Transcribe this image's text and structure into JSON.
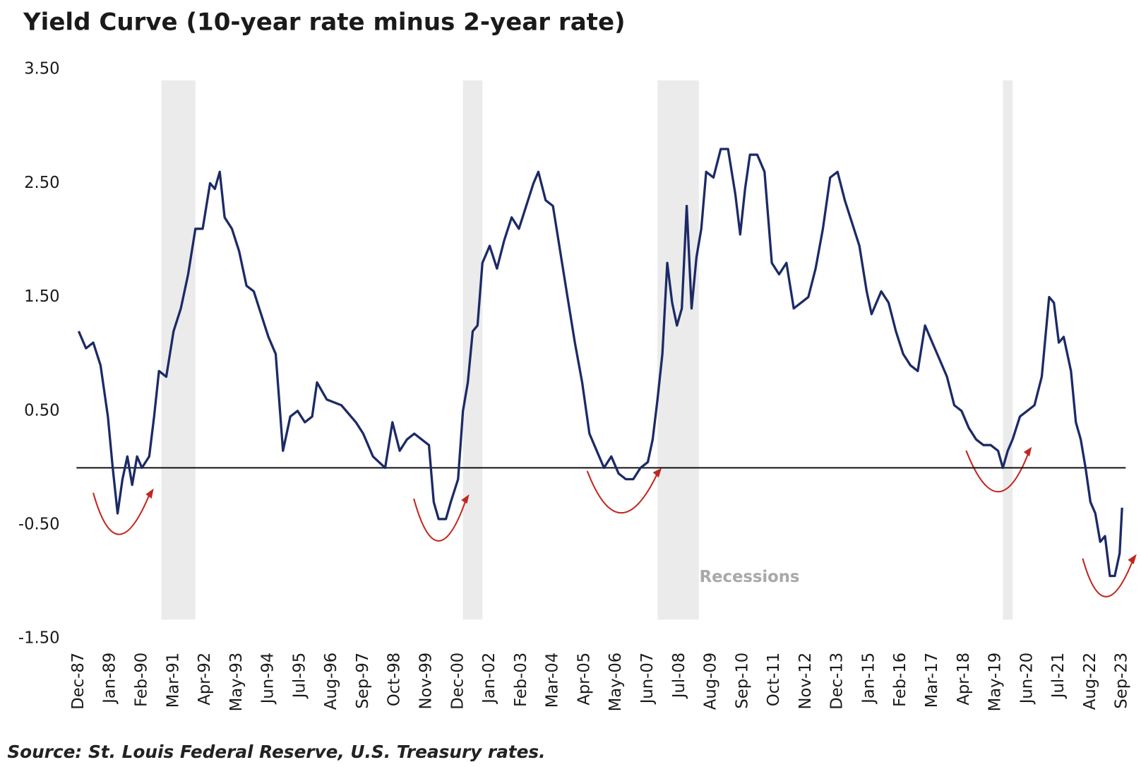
{
  "chart_data": {
    "type": "line",
    "title": "Yield Curve (10-year rate minus 2-year rate)",
    "source": "Source: St. Louis Federal Reserve, U.S. Treasury rates.",
    "annotation": "Recessions",
    "xlim": [
      "1987-12",
      "2023-09"
    ],
    "ylim": [
      -1.5,
      3.5
    ],
    "yticks": [
      {
        "value": 3.5,
        "label": "3.50"
      },
      {
        "value": 2.5,
        "label": "2.50"
      },
      {
        "value": 1.5,
        "label": "1.50"
      },
      {
        "value": 0.5,
        "label": "0.50"
      },
      {
        "value": -0.5,
        "label": "-0.50"
      },
      {
        "value": -1.5,
        "label": "-1.50"
      }
    ],
    "xticks": [
      {
        "value": "1987-12",
        "label": "Dec-87"
      },
      {
        "value": "1989-01",
        "label": "Jan-89"
      },
      {
        "value": "1990-02",
        "label": "Feb-90"
      },
      {
        "value": "1991-03",
        "label": "Mar-91"
      },
      {
        "value": "1992-04",
        "label": "Apr-92"
      },
      {
        "value": "1993-05",
        "label": "May-93"
      },
      {
        "value": "1994-06",
        "label": "Jun-94"
      },
      {
        "value": "1995-07",
        "label": "Jul-95"
      },
      {
        "value": "1996-08",
        "label": "Aug-96"
      },
      {
        "value": "1997-09",
        "label": "Sep-97"
      },
      {
        "value": "1998-10",
        "label": "Oct-98"
      },
      {
        "value": "1999-11",
        "label": "Nov-99"
      },
      {
        "value": "2000-12",
        "label": "Dec-00"
      },
      {
        "value": "2002-01",
        "label": "Jan-02"
      },
      {
        "value": "2003-02",
        "label": "Feb-03"
      },
      {
        "value": "2004-03",
        "label": "Mar-04"
      },
      {
        "value": "2005-04",
        "label": "Apr-05"
      },
      {
        "value": "2006-05",
        "label": "May-06"
      },
      {
        "value": "2007-06",
        "label": "Jun-07"
      },
      {
        "value": "2008-07",
        "label": "Jul-08"
      },
      {
        "value": "2009-08",
        "label": "Aug-09"
      },
      {
        "value": "2010-09",
        "label": "Sep-10"
      },
      {
        "value": "2011-10",
        "label": "Oct-11"
      },
      {
        "value": "2012-11",
        "label": "Nov-12"
      },
      {
        "value": "2013-12",
        "label": "Dec-13"
      },
      {
        "value": "2015-01",
        "label": "Jan-15"
      },
      {
        "value": "2016-02",
        "label": "Feb-16"
      },
      {
        "value": "2017-03",
        "label": "Mar-17"
      },
      {
        "value": "2018-04",
        "label": "Apr-18"
      },
      {
        "value": "2019-05",
        "label": "May-19"
      },
      {
        "value": "2020-06",
        "label": "Jun-20"
      },
      {
        "value": "2021-07",
        "label": "Jul-21"
      },
      {
        "value": "2022-08",
        "label": "Aug-22"
      },
      {
        "value": "2023-09",
        "label": "Sep-23"
      }
    ],
    "recessions": [
      {
        "start": "1990-10",
        "end": "1991-12"
      },
      {
        "start": "2001-02",
        "end": "2001-10"
      },
      {
        "start": "2007-10",
        "end": "2009-03"
      },
      {
        "start": "2019-08",
        "end": "2019-12"
      }
    ],
    "recession_color": "#ebebeb",
    "x": [
      "1987-12",
      "1988-03",
      "1988-06",
      "1988-09",
      "1988-12",
      "1989-02",
      "1989-04",
      "1989-06",
      "1989-08",
      "1989-10",
      "1989-12",
      "1990-02",
      "1990-05",
      "1990-07",
      "1990-09",
      "1990-12",
      "1991-03",
      "1991-06",
      "1991-09",
      "1991-12",
      "1992-03",
      "1992-06",
      "1992-08",
      "1992-10",
      "1992-12",
      "1993-03",
      "1993-06",
      "1993-09",
      "1993-12",
      "1994-03",
      "1994-06",
      "1994-09",
      "1994-12",
      "1995-03",
      "1995-06",
      "1995-09",
      "1995-12",
      "1996-02",
      "1996-06",
      "1996-12",
      "1997-06",
      "1997-09",
      "1998-01",
      "1998-06",
      "1998-09",
      "1998-12",
      "1999-03",
      "1999-06",
      "1999-09",
      "1999-12",
      "2000-02",
      "2000-04",
      "2000-07",
      "2000-09",
      "2000-12",
      "2001-02",
      "2001-04",
      "2001-06",
      "2001-08",
      "2001-10",
      "2002-01",
      "2002-04",
      "2002-07",
      "2002-10",
      "2003-01",
      "2003-04",
      "2003-07",
      "2003-09",
      "2003-12",
      "2004-03",
      "2004-06",
      "2004-09",
      "2004-12",
      "2005-03",
      "2005-06",
      "2005-09",
      "2005-12",
      "2006-03",
      "2006-06",
      "2006-09",
      "2006-12",
      "2007-03",
      "2007-06",
      "2007-08",
      "2007-10",
      "2007-12",
      "2008-02",
      "2008-04",
      "2008-06",
      "2008-08",
      "2008-10",
      "2008-12",
      "2009-02",
      "2009-04",
      "2009-06",
      "2009-09",
      "2009-12",
      "2010-03",
      "2010-06",
      "2010-08",
      "2010-10",
      "2010-12",
      "2011-03",
      "2011-06",
      "2011-09",
      "2011-12",
      "2012-03",
      "2012-06",
      "2012-09",
      "2012-12",
      "2013-03",
      "2013-06",
      "2013-09",
      "2013-12",
      "2014-03",
      "2014-06",
      "2014-09",
      "2014-12",
      "2015-02",
      "2015-06",
      "2015-09",
      "2015-12",
      "2016-03",
      "2016-06",
      "2016-09",
      "2016-12",
      "2017-03",
      "2017-06",
      "2017-09",
      "2017-12",
      "2018-03",
      "2018-06",
      "2018-09",
      "2018-12",
      "2019-03",
      "2019-06",
      "2019-08",
      "2019-10",
      "2019-12",
      "2020-03",
      "2020-06",
      "2020-09",
      "2020-12",
      "2021-03",
      "2021-05",
      "2021-07",
      "2021-09",
      "2021-12",
      "2022-02",
      "2022-04",
      "2022-06",
      "2022-08",
      "2022-10",
      "2022-12",
      "2023-02",
      "2023-04",
      "2023-06",
      "2023-08",
      "2023-09"
    ],
    "series": [
      {
        "color": "#1c2a66",
        "values": [
          1.2,
          1.05,
          1.1,
          0.9,
          0.45,
          0.0,
          -0.4,
          -0.1,
          0.1,
          -0.15,
          0.1,
          0.0,
          0.1,
          0.45,
          0.85,
          0.8,
          1.2,
          1.4,
          1.7,
          2.1,
          2.1,
          2.5,
          2.45,
          2.6,
          2.2,
          2.1,
          1.9,
          1.6,
          1.55,
          1.35,
          1.15,
          1.0,
          0.15,
          0.45,
          0.5,
          0.4,
          0.45,
          0.75,
          0.6,
          0.55,
          0.4,
          0.3,
          0.1,
          0.0,
          0.4,
          0.15,
          0.25,
          0.3,
          0.25,
          0.2,
          -0.3,
          -0.45,
          -0.45,
          -0.3,
          -0.1,
          0.5,
          0.75,
          1.2,
          1.25,
          1.8,
          1.95,
          1.75,
          2.0,
          2.2,
          2.1,
          2.3,
          2.5,
          2.6,
          2.35,
          2.3,
          1.9,
          1.5,
          1.1,
          0.75,
          0.3,
          0.15,
          0.0,
          0.1,
          -0.05,
          -0.1,
          -0.1,
          0.0,
          0.05,
          0.25,
          0.6,
          1.0,
          1.8,
          1.45,
          1.25,
          1.4,
          2.3,
          1.4,
          1.85,
          2.1,
          2.6,
          2.55,
          2.8,
          2.8,
          2.4,
          2.05,
          2.45,
          2.75,
          2.75,
          2.6,
          1.8,
          1.7,
          1.8,
          1.4,
          1.45,
          1.5,
          1.75,
          2.1,
          2.55,
          2.6,
          2.35,
          2.15,
          1.95,
          1.55,
          1.35,
          1.55,
          1.45,
          1.2,
          1.0,
          0.9,
          0.85,
          1.25,
          1.1,
          0.95,
          0.8,
          0.55,
          0.5,
          0.35,
          0.25,
          0.2,
          0.2,
          0.15,
          0.0,
          0.15,
          0.25,
          0.45,
          0.5,
          0.55,
          0.8,
          1.5,
          1.45,
          1.1,
          1.15,
          0.85,
          0.4,
          0.25,
          0.0,
          -0.3,
          -0.4,
          -0.65,
          -0.6,
          -0.95,
          -0.95,
          -0.75,
          -0.35
        ]
      }
    ]
  }
}
